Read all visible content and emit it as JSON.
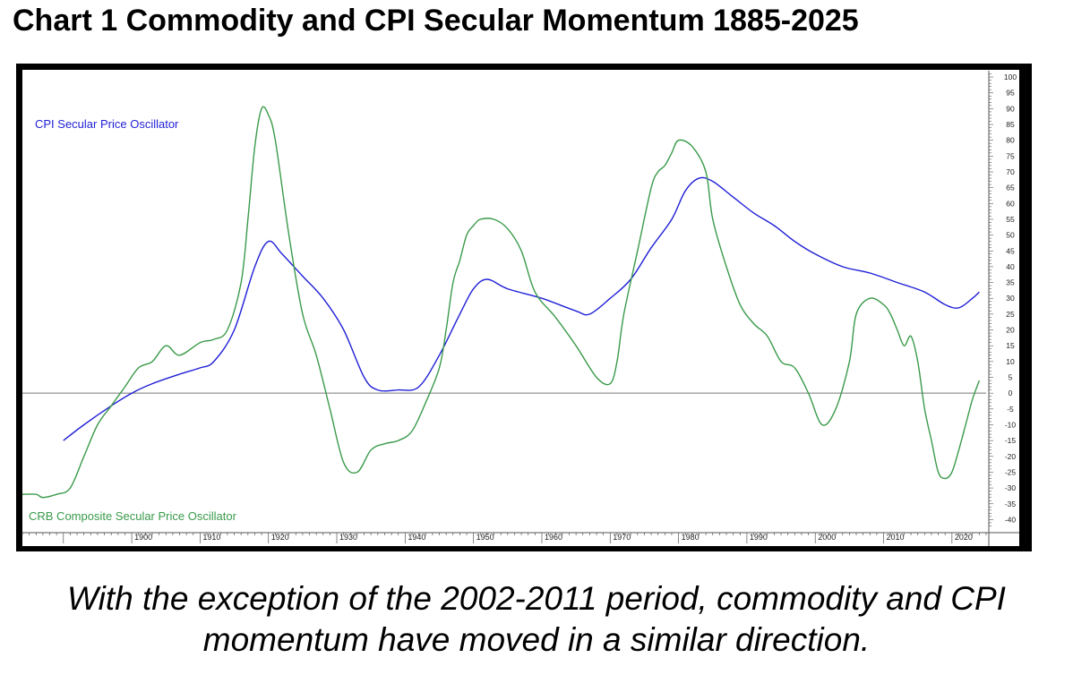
{
  "title": "Chart 1 Commodity and CPI Secular Momentum 1885-2025",
  "caption": {
    "line1": "With the exception of the 2002-2011 period, commodity and CPI",
    "line2": "momentum have moved in a similar direction."
  },
  "colors": {
    "cpi": "#1f1fd6",
    "crb": "#3a9a4a",
    "zero_line": "#777777",
    "axis": "#555555",
    "frame": "#000000"
  },
  "chart_data": {
    "type": "line",
    "title": "Chart 1 Commodity and CPI Secular Momentum 1885-2025",
    "xlim": [
      1884,
      2025
    ],
    "ylim": [
      -43,
      102
    ],
    "x_ticks": [
      1900,
      1910,
      1920,
      1930,
      1940,
      1950,
      1960,
      1970,
      1980,
      1990,
      2000,
      2010,
      2020
    ],
    "y_ticks": [
      100,
      95,
      90,
      85,
      80,
      75,
      70,
      65,
      60,
      55,
      50,
      45,
      40,
      35,
      30,
      25,
      20,
      15,
      10,
      5,
      0,
      -5,
      -10,
      -15,
      -20,
      -25,
      -30,
      -35,
      -40
    ],
    "grid": false,
    "reference_line": 0,
    "series": [
      {
        "name": "CPI Secular Price Oscillator",
        "label_position": "top-left",
        "x": [
          1890,
          1893,
          1897,
          1900,
          1903,
          1907,
          1910,
          1912,
          1915,
          1918,
          1920,
          1922,
          1925,
          1928,
          1931,
          1934,
          1936,
          1939,
          1942,
          1945,
          1948,
          1950,
          1952,
          1955,
          1960,
          1965,
          1967,
          1970,
          1973,
          1976,
          1979,
          1981,
          1983,
          1985,
          1988,
          1991,
          1994,
          1997,
          2000,
          2004,
          2008,
          2012,
          2016,
          2019,
          2021,
          2023,
          2024
        ],
        "y": [
          -15,
          -10,
          -4,
          0,
          3,
          6,
          8,
          10,
          20,
          40,
          48,
          44,
          37,
          30,
          20,
          5,
          1,
          1,
          2,
          12,
          25,
          33,
          36,
          33,
          30,
          26,
          25,
          30,
          36,
          46,
          55,
          64,
          68,
          67,
          62,
          57,
          53,
          48,
          44,
          40,
          38,
          35,
          32,
          28,
          27,
          30,
          32
        ]
      },
      {
        "name": "CRB Composite Secular Price Oscillator",
        "label_position": "bottom-left",
        "x": [
          1884,
          1886,
          1887,
          1889,
          1891,
          1893,
          1895,
          1897,
          1899,
          1901,
          1903,
          1905,
          1907,
          1910,
          1912,
          1914,
          1916,
          1917,
          1918,
          1919,
          1920,
          1921,
          1923,
          1925,
          1927,
          1929,
          1931,
          1933,
          1935,
          1937,
          1939,
          1941,
          1943,
          1945,
          1946,
          1947,
          1948,
          1949,
          1950,
          1951,
          1953,
          1955,
          1957,
          1959,
          1962,
          1965,
          1968,
          1970,
          1971,
          1972,
          1974,
          1976,
          1977,
          1978,
          1979,
          1980,
          1982,
          1984,
          1985,
          1987,
          1989,
          1991,
          1993,
          1995,
          1997,
          1999,
          2001,
          2003,
          2005,
          2006,
          2008,
          2010,
          2011,
          2012,
          2013,
          2014,
          2015,
          2016,
          2017,
          2018,
          2019,
          2020,
          2021,
          2022,
          2023,
          2024
        ],
        "y": [
          -32,
          -32,
          -33,
          -32,
          -30,
          -20,
          -10,
          -4,
          2,
          8,
          10,
          15,
          12,
          16,
          17,
          20,
          35,
          55,
          78,
          90,
          88,
          80,
          50,
          25,
          12,
          -5,
          -22,
          -25,
          -18,
          -16,
          -15,
          -12,
          -3,
          8,
          20,
          35,
          42,
          50,
          53,
          55,
          55,
          52,
          45,
          32,
          24,
          15,
          5,
          3,
          10,
          25,
          45,
          65,
          70,
          72,
          76,
          80,
          78,
          70,
          55,
          40,
          28,
          22,
          18,
          10,
          8,
          0,
          -10,
          -5,
          10,
          25,
          30,
          28,
          25,
          20,
          15,
          18,
          10,
          -5,
          -15,
          -25,
          -27,
          -25,
          -18,
          -10,
          -2,
          4
        ]
      }
    ]
  }
}
